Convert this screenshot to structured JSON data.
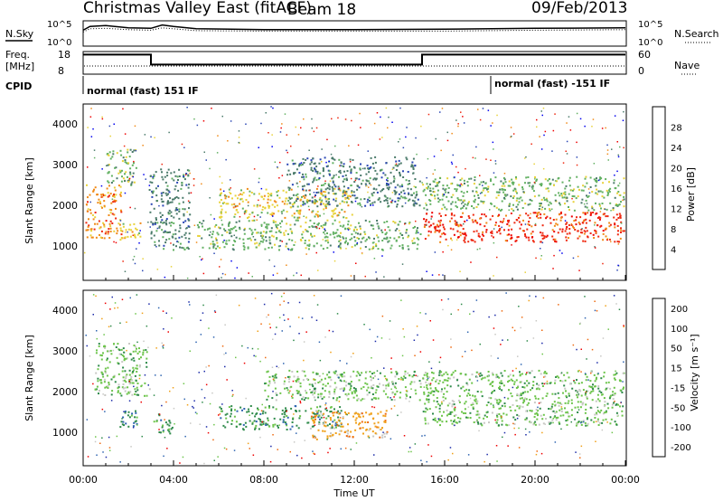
{
  "header": {
    "station": "Christmas Valley East (fitACF)",
    "beam": "Beam 18",
    "date": "09/Feb/2013"
  },
  "params": {
    "nsky_label": "N.Sky",
    "nsearch_label": "N.Search",
    "freq_label_1": "Freq.",
    "freq_label_2": "[MHz]",
    "nave_label": "Nave",
    "cpid_label": "CPID",
    "nsky_tick_hi": "10^5",
    "nsky_tick_lo": "10^0",
    "nsearch_tick_hi": "10^5",
    "nsearch_tick_lo": "10^0",
    "freq_tick_hi": "18",
    "freq_tick_lo": "8",
    "nave_tick_hi": "60",
    "nave_tick_lo": "0",
    "cpid_segments": [
      {
        "label": "normal (fast) 151 IF",
        "start_h": 0,
        "end_h": 17.9
      },
      {
        "label": "normal (fast) -151 IF",
        "start_h": 17.9,
        "end_h": 24
      }
    ]
  },
  "xaxis": {
    "label": "Time UT",
    "ticks": [
      "00:00",
      "04:00",
      "08:00",
      "12:00",
      "16:00",
      "20:00",
      "00:00"
    ]
  },
  "power_panel": {
    "ylabel": "Slant Range [km]",
    "yticks": [
      "1000",
      "2000",
      "3000",
      "4000"
    ],
    "colorbar_title": "Power [dB]",
    "colorbar_ticks": [
      "4",
      "8",
      "12",
      "16",
      "20",
      "24",
      "28"
    ],
    "colors": [
      "#0000ee",
      "#2a46b4",
      "#4a7a6a",
      "#62b062",
      "#e8d23a",
      "#f08a18",
      "#ee2810",
      "#ee0000"
    ]
  },
  "velocity_panel": {
    "ylabel": "Slant Range [km]",
    "yticks": [
      "1000",
      "2000",
      "3000",
      "4000"
    ],
    "colorbar_title": "Velocity [m s⁻¹]",
    "colorbar_ticks": [
      "200",
      "100",
      "50",
      "15",
      "-15",
      "-50",
      "-100",
      "-200"
    ],
    "colors": [
      "#1a2aa8",
      "#2e64b0",
      "#2e8a4a",
      "#6cc44a",
      "#c8c8c4",
      "#f0a018",
      "#ee6a10",
      "#ee0000"
    ]
  },
  "chart_data": {
    "type": "heatmap",
    "title": "Christmas Valley East (fitACF) Beam 18",
    "date": "09/Feb/2013",
    "xlabel": "Time UT",
    "ylabel": "Slant Range [km]",
    "xlim_hours": [
      0,
      24
    ],
    "ylim_km": [
      180,
      4600
    ],
    "scalar_series": {
      "freq_mhz": {
        "x": [
          0,
          3,
          3,
          15,
          15,
          24
        ],
        "y": [
          18.3,
          18.3,
          12.8,
          12.8,
          18.3,
          18.3
        ]
      },
      "nsky_log10": {
        "x": [
          0,
          0.3,
          1,
          2,
          3,
          3.5,
          4,
          5,
          8,
          12,
          16,
          20,
          24
        ],
        "y": [
          3.2,
          4.0,
          4.2,
          3.7,
          3.6,
          4.3,
          4.0,
          3.5,
          3.3,
          3.3,
          3.4,
          3.6,
          3.7
        ]
      },
      "nsearch_log10": {
        "x": [
          0,
          0.3,
          1,
          2,
          3,
          3.5,
          4,
          5,
          8,
          12,
          16,
          20,
          24
        ],
        "y": [
          2.8,
          3.5,
          3.6,
          3.3,
          3.2,
          3.7,
          3.5,
          3.1,
          3.0,
          3.0,
          3.0,
          3.2,
          3.3
        ]
      }
    },
    "power_regions": [
      {
        "t0": 0.1,
        "t1": 1.8,
        "r0": 1200,
        "r1": 2600,
        "value_db": 22
      },
      {
        "t0": 1.0,
        "t1": 2.4,
        "r0": 2500,
        "r1": 3500,
        "value_db": 12
      },
      {
        "t0": 1.6,
        "t1": 2.6,
        "r0": 1150,
        "r1": 1650,
        "value_db": 18
      },
      {
        "t0": 2.9,
        "t1": 4.8,
        "r0": 900,
        "r1": 3000,
        "value_db": 8
      },
      {
        "t0": 5.0,
        "t1": 15.0,
        "r0": 900,
        "r1": 1700,
        "value_db": 14
      },
      {
        "t0": 6.0,
        "t1": 12.0,
        "r0": 1700,
        "r1": 2500,
        "value_db": 18
      },
      {
        "t0": 9.0,
        "t1": 15.0,
        "r0": 2000,
        "r1": 3300,
        "value_db": 10
      },
      {
        "t0": 15.0,
        "t1": 24.0,
        "r0": 1100,
        "r1": 1900,
        "value_db": 27
      },
      {
        "t0": 15.0,
        "t1": 24.0,
        "r0": 1900,
        "r1": 2800,
        "value_db": 15
      }
    ],
    "velocity_regions": [
      {
        "t0": 0.5,
        "t1": 3.0,
        "r0": 1900,
        "r1": 3300,
        "value_ms": 0
      },
      {
        "t0": 1.6,
        "t1": 2.5,
        "r0": 1100,
        "r1": 1650,
        "value_ms": 70
      },
      {
        "t0": 3.1,
        "t1": 4.0,
        "r0": 950,
        "r1": 1500,
        "value_ms": 60
      },
      {
        "t0": 6.0,
        "t1": 11.5,
        "r0": 1050,
        "r1": 1700,
        "value_ms": 45
      },
      {
        "t0": 10.0,
        "t1": 13.5,
        "r0": 800,
        "r1": 1600,
        "value_ms": -45
      },
      {
        "t0": 8.0,
        "t1": 15.0,
        "r0": 1800,
        "r1": 2600,
        "value_ms": 0
      },
      {
        "t0": 15.0,
        "t1": 24.0,
        "r0": 1150,
        "r1": 2600,
        "value_ms": 0
      }
    ]
  }
}
